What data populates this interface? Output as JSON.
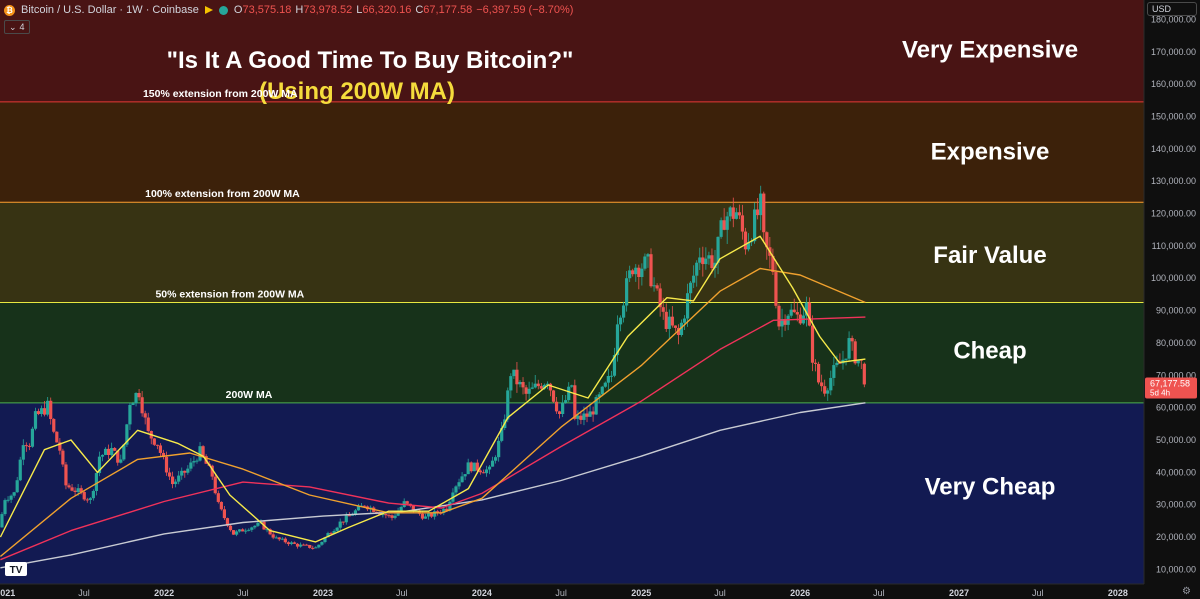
{
  "header": {
    "coin_glyph": "₿",
    "symbol": "Bitcoin / U.S. Dollar · 1W · Coinbase",
    "ohlc": [
      {
        "k": "O",
        "v": "73,575.18"
      },
      {
        "k": "H",
        "v": "73,978.52"
      },
      {
        "k": "L",
        "v": "66,320.16"
      },
      {
        "k": "C",
        "v": "67,177.58"
      },
      {
        "k": "",
        "v": "−6,397.59 (−8.70%)"
      }
    ],
    "indicator_toggle": "4",
    "currency": "USD",
    "logo": "TV"
  },
  "chart_data": {
    "type": "candlestick",
    "title": "\"Is It A Good Time To Buy Bitcoin?\"",
    "subtitle": "(Using 200W MA)",
    "y_scale": "linear",
    "ylim": [
      5500,
      186000
    ],
    "y_ticks": [
      10000,
      20000,
      30000,
      40000,
      50000,
      60000,
      70000,
      80000,
      90000,
      100000,
      110000,
      120000,
      130000,
      140000,
      150000,
      160000,
      170000,
      180000
    ],
    "y_tick_labels": [
      "10,000.00",
      "20,000.00",
      "30,000.00",
      "40,000.00",
      "50,000.00",
      "60,000.00",
      "70,000.00",
      "80,000.00",
      "90,000.00",
      "100,000.00",
      "110,000.00",
      "120,000.00",
      "130,000.00",
      "140,000.00",
      "150,000.00",
      "160,000.00",
      "170,000.00",
      "180,000.00"
    ],
    "xlim": [
      "2020-12-20",
      "2028-03-01"
    ],
    "x_ticks": [
      {
        "date": "2021-01-01",
        "label": "2021",
        "bold": true
      },
      {
        "date": "2021-07-01",
        "label": "Jul",
        "bold": false
      },
      {
        "date": "2022-01-01",
        "label": "2022",
        "bold": true
      },
      {
        "date": "2022-07-01",
        "label": "Jul",
        "bold": false
      },
      {
        "date": "2023-01-01",
        "label": "2023",
        "bold": true
      },
      {
        "date": "2023-07-01",
        "label": "Jul",
        "bold": false
      },
      {
        "date": "2024-01-01",
        "label": "2024",
        "bold": true
      },
      {
        "date": "2024-07-01",
        "label": "Jul",
        "bold": false
      },
      {
        "date": "2025-01-01",
        "label": "2025",
        "bold": true
      },
      {
        "date": "2025-07-01",
        "label": "Jul",
        "bold": false
      },
      {
        "date": "2026-01-01",
        "label": "2026",
        "bold": true
      },
      {
        "date": "2026-07-01",
        "label": "Jul",
        "bold": false
      },
      {
        "date": "2027-01-01",
        "label": "2027",
        "bold": true
      },
      {
        "date": "2027-07-01",
        "label": "Jul",
        "bold": false
      },
      {
        "date": "2028-01-01",
        "label": "2028",
        "bold": true
      }
    ],
    "zones": [
      {
        "name": "Very Cheap",
        "from": 5500,
        "to": 61500,
        "color": "#121a52"
      },
      {
        "name": "Cheap",
        "from": 61500,
        "to": 92500,
        "color": "#17321a"
      },
      {
        "name": "Fair Value",
        "from": 92500,
        "to": 123500,
        "color": "#373313"
      },
      {
        "name": "Expensive",
        "from": 123500,
        "to": 154500,
        "color": "#3c210a"
      },
      {
        "name": "Very Expensive",
        "from": 154500,
        "to": 186000,
        "color": "#491414"
      }
    ],
    "zone_label_values": [
      36000,
      78000,
      107500,
      139500,
      171000
    ],
    "zone_line_colors": [
      "#4caf50",
      "#e8e840",
      "#ff9e2e",
      "#e53935"
    ],
    "band_labels": [
      {
        "text": "200W MA",
        "value": 61500,
        "date": "2022-07-15"
      },
      {
        "text": "50% extension from 200W MA",
        "value": 92500,
        "date": "2022-06-01"
      },
      {
        "text": "100% extension from 200W MA",
        "value": 123500,
        "date": "2022-05-15"
      },
      {
        "text": "150% extension from 200W MA",
        "value": 154500,
        "date": "2022-05-10"
      }
    ],
    "candle_week_start": "2020-12-21",
    "price_path": [
      [
        "2020-12-21",
        23000
      ],
      [
        "2021-01-04",
        32000
      ],
      [
        "2021-01-25",
        33500
      ],
      [
        "2021-02-15",
        50000
      ],
      [
        "2021-03-01",
        49000
      ],
      [
        "2021-03-15",
        57000
      ],
      [
        "2021-04-12",
        60500
      ],
      [
        "2021-04-26",
        52000
      ],
      [
        "2021-05-10",
        47000
      ],
      [
        "2021-05-24",
        36000
      ],
      [
        "2021-06-21",
        34000
      ],
      [
        "2021-07-19",
        31500
      ],
      [
        "2021-08-09",
        45000
      ],
      [
        "2021-09-06",
        47000
      ],
      [
        "2021-09-27",
        43000
      ],
      [
        "2021-10-18",
        62000
      ],
      [
        "2021-11-08",
        65000
      ],
      [
        "2021-11-29",
        52000
      ],
      [
        "2021-12-20",
        49000
      ],
      [
        "2022-01-24",
        36500
      ],
      [
        "2022-02-28",
        41000
      ],
      [
        "2022-03-28",
        46500
      ],
      [
        "2022-04-25",
        39000
      ],
      [
        "2022-05-09",
        30000
      ],
      [
        "2022-06-13",
        21000
      ],
      [
        "2022-07-18",
        23000
      ],
      [
        "2022-08-15",
        24000
      ],
      [
        "2022-09-19",
        19500
      ],
      [
        "2022-11-07",
        17500
      ],
      [
        "2022-12-19",
        16700
      ],
      [
        "2023-01-16",
        21000
      ],
      [
        "2023-02-13",
        24500
      ],
      [
        "2023-03-20",
        28000
      ],
      [
        "2023-04-10",
        30000
      ],
      [
        "2023-06-12",
        26000
      ],
      [
        "2023-07-10",
        30500
      ],
      [
        "2023-08-28",
        26000
      ],
      [
        "2023-10-16",
        29000
      ],
      [
        "2023-10-30",
        35000
      ],
      [
        "2023-12-04",
        42000
      ],
      [
        "2024-01-22",
        40500
      ],
      [
        "2024-02-19",
        52000
      ],
      [
        "2024-03-11",
        71000
      ],
      [
        "2024-04-15",
        64000
      ],
      [
        "2024-06-03",
        69000
      ],
      [
        "2024-07-01",
        58000
      ],
      [
        "2024-07-29",
        67000
      ],
      [
        "2024-08-05",
        56000
      ],
      [
        "2024-09-09",
        58000
      ],
      [
        "2024-10-28",
        70000
      ],
      [
        "2024-11-11",
        88000
      ],
      [
        "2024-12-16",
        104000
      ],
      [
        "2025-01-20",
        104000
      ],
      [
        "2025-02-24",
        88000
      ],
      [
        "2025-03-31",
        82000
      ],
      [
        "2025-04-21",
        94000
      ],
      [
        "2025-05-19",
        108000
      ],
      [
        "2025-06-23",
        105000
      ],
      [
        "2025-07-14",
        119000
      ],
      [
        "2025-08-11",
        120500
      ],
      [
        "2025-09-01",
        111000
      ],
      [
        "2025-10-06",
        122000
      ],
      [
        "2025-10-13",
        111000
      ],
      [
        "2025-11-03",
        103000
      ],
      [
        "2025-11-17",
        86000
      ],
      [
        "2025-12-08",
        90000
      ],
      [
        "2025-12-29",
        88000
      ],
      [
        "2026-01-19",
        91000
      ],
      [
        "2026-02-02",
        76000
      ],
      [
        "2026-02-16",
        68000
      ],
      [
        "2026-03-02",
        66000
      ],
      [
        "2026-03-23",
        71000
      ],
      [
        "2026-04-13",
        75000
      ],
      [
        "2026-04-27",
        80000
      ],
      [
        "2026-05-11",
        76000
      ],
      [
        "2026-05-25",
        73575.18
      ]
    ],
    "last_candle": {
      "open": 73575.18,
      "high": 73978.52,
      "low": 66320.16,
      "close": 67177.58
    },
    "moving_averages": [
      {
        "color": "#c8cbd3",
        "points": [
          [
            "2020-12-21",
            10500
          ],
          [
            "2021-06-01",
            14500
          ],
          [
            "2022-01-01",
            21000
          ],
          [
            "2022-07-01",
            24500
          ],
          [
            "2023-01-01",
            26500
          ],
          [
            "2023-07-01",
            27800
          ],
          [
            "2024-01-01",
            31500
          ],
          [
            "2024-07-01",
            37500
          ],
          [
            "2025-01-01",
            45000
          ],
          [
            "2025-07-01",
            53000
          ],
          [
            "2026-01-01",
            58500
          ],
          [
            "2026-05-31",
            61500
          ]
        ]
      },
      {
        "color": "#f0325a",
        "points": [
          [
            "2020-12-21",
            13000
          ],
          [
            "2021-06-01",
            22000
          ],
          [
            "2022-01-01",
            31000
          ],
          [
            "2022-07-01",
            37000
          ],
          [
            "2022-12-01",
            35500
          ],
          [
            "2023-06-01",
            30500
          ],
          [
            "2023-10-01",
            29000
          ],
          [
            "2024-01-01",
            33500
          ],
          [
            "2024-07-01",
            48000
          ],
          [
            "2025-01-01",
            62000
          ],
          [
            "2025-07-01",
            78000
          ],
          [
            "2025-11-01",
            87000
          ],
          [
            "2026-05-31",
            88000
          ]
        ]
      },
      {
        "color": "#f0a12e",
        "points": [
          [
            "2020-12-21",
            14000
          ],
          [
            "2021-06-01",
            32000
          ],
          [
            "2021-11-01",
            44000
          ],
          [
            "2022-03-01",
            46000
          ],
          [
            "2022-07-01",
            41000
          ],
          [
            "2022-12-01",
            33000
          ],
          [
            "2023-06-01",
            27500
          ],
          [
            "2023-10-01",
            27500
          ],
          [
            "2024-01-01",
            32000
          ],
          [
            "2024-07-01",
            54000
          ],
          [
            "2025-01-01",
            73000
          ],
          [
            "2025-07-01",
            96000
          ],
          [
            "2025-10-01",
            103000
          ],
          [
            "2026-01-01",
            101000
          ],
          [
            "2026-05-31",
            92500
          ]
        ]
      },
      {
        "color": "#f7ea4a",
        "points": [
          [
            "2020-12-21",
            20000
          ],
          [
            "2021-04-01",
            47000
          ],
          [
            "2021-06-01",
            50000
          ],
          [
            "2021-08-01",
            40000
          ],
          [
            "2021-11-01",
            53000
          ],
          [
            "2022-02-01",
            49000
          ],
          [
            "2022-04-01",
            45000
          ],
          [
            "2022-06-01",
            33000
          ],
          [
            "2022-09-01",
            22000
          ],
          [
            "2022-12-15",
            18500
          ],
          [
            "2023-03-01",
            23000
          ],
          [
            "2023-06-01",
            28000
          ],
          [
            "2023-09-01",
            28000
          ],
          [
            "2023-12-01",
            35000
          ],
          [
            "2024-03-01",
            57000
          ],
          [
            "2024-06-01",
            67000
          ],
          [
            "2024-09-01",
            63000
          ],
          [
            "2024-12-01",
            82000
          ],
          [
            "2025-03-01",
            94000
          ],
          [
            "2025-05-01",
            93000
          ],
          [
            "2025-07-01",
            106000
          ],
          [
            "2025-10-01",
            113000
          ],
          [
            "2025-12-15",
            97000
          ],
          [
            "2026-02-15",
            82000
          ],
          [
            "2026-04-01",
            74000
          ],
          [
            "2026-05-31",
            75000
          ]
        ]
      }
    ],
    "price_label": {
      "value": "67,177.58",
      "countdown": "5d 4h",
      "color": "#ef5350"
    }
  }
}
